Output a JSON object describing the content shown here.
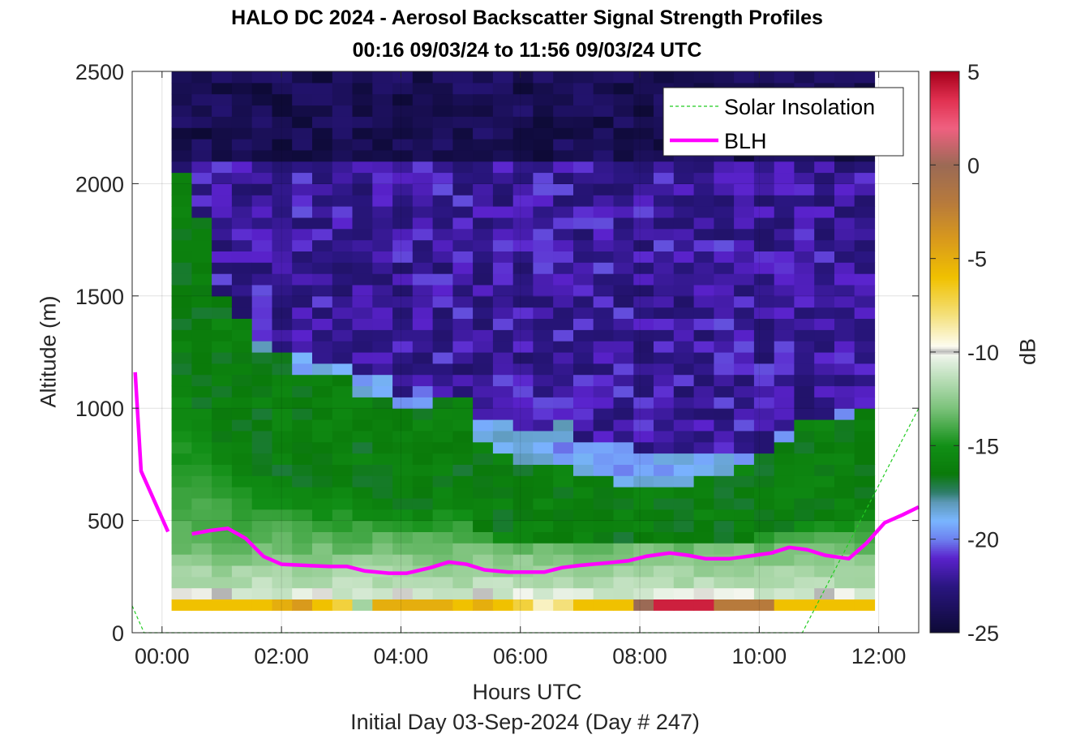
{
  "title_line1": "HALO DC 2024 - Aerosol Backscatter Signal Strength Profiles",
  "title_line2": "00:16 09/03/24 to 11:56 09/03/24  UTC",
  "footnote": "Initial Day 03-Sep-2024 (Day # 247)",
  "chart_data": {
    "type": "heatmap",
    "xlabel": "Hours UTC",
    "ylabel": "Altitude (m)",
    "colorbar_label": "dB",
    "xlim": [
      -0.5,
      12.67
    ],
    "ylim": [
      0,
      2500
    ],
    "x_ticks": [
      0,
      2,
      4,
      6,
      8,
      10,
      12
    ],
    "x_tick_labels": [
      "00:00",
      "02:00",
      "04:00",
      "06:00",
      "08:00",
      "10:00",
      "12:00"
    ],
    "y_ticks": [
      0,
      500,
      1000,
      1500,
      2000,
      2500
    ],
    "y_tick_labels": [
      "0",
      "500",
      "1000",
      "1500",
      "2000",
      "2500"
    ],
    "clim": [
      -25,
      5
    ],
    "colorbar_ticks": [
      5,
      0,
      -5,
      -10,
      -15,
      -20,
      -25
    ],
    "colorbar_tick_labels": [
      "5",
      "0",
      "-5",
      "-10",
      "-15",
      "-20",
      "-25"
    ],
    "colormap_stops": [
      {
        "v": -25,
        "c": "#0d0a35"
      },
      {
        "v": -22.5,
        "c": "#2a1680"
      },
      {
        "v": -21,
        "c": "#5a22cc"
      },
      {
        "v": -20,
        "c": "#6d80ef"
      },
      {
        "v": -19,
        "c": "#7ab6ff"
      },
      {
        "v": -18,
        "c": "#5c98b5"
      },
      {
        "v": -17.5,
        "c": "#2f7d6a"
      },
      {
        "v": -16.5,
        "c": "#0a7a0a"
      },
      {
        "v": -15,
        "c": "#118f16"
      },
      {
        "v": -13,
        "c": "#7bc27a"
      },
      {
        "v": -10.5,
        "c": "#dfeedd"
      },
      {
        "v": -10.1,
        "c": "#f4f6ee"
      },
      {
        "v": -10,
        "c": "#b0b0b0"
      },
      {
        "v": -9.7,
        "c": "#fdfdf2"
      },
      {
        "v": -8,
        "c": "#f4e07a"
      },
      {
        "v": -6,
        "c": "#f0c100"
      },
      {
        "v": -4,
        "c": "#d99a1c"
      },
      {
        "v": -2,
        "c": "#b77a3c"
      },
      {
        "v": 0,
        "c": "#9b6a55"
      },
      {
        "v": 2,
        "c": "#f06080"
      },
      {
        "v": 3.5,
        "c": "#e03050"
      },
      {
        "v": 5,
        "c": "#a6001b"
      }
    ],
    "heatmap": {
      "x_start": 0.16,
      "x_end": 11.93,
      "num_columns": 35,
      "y_start": 100,
      "y_end": 2500,
      "num_rows": 48,
      "description": "Signal strength (dB) per time column / 50 m altitude bin; grid values generated from estimated profile parameters below",
      "surface_values_first_bin": [
        -6,
        -6,
        -6,
        -6,
        -6,
        -5,
        -4,
        -6,
        -7,
        -12,
        -5,
        -5,
        -5,
        -5,
        -6,
        -5,
        -6,
        -7,
        -9,
        -8,
        -6,
        -6,
        -6,
        0,
        4,
        4,
        4,
        -2,
        -2,
        -2,
        -6,
        -6,
        -6,
        -6,
        -6
      ],
      "cloud_top_altitudes_m": [
        1350,
        1400,
        1450,
        1400,
        1300,
        1250,
        1250,
        1200,
        1200,
        1150,
        1150,
        1050,
        1100,
        1050,
        1050,
        950,
        950,
        900,
        900,
        950,
        850,
        850,
        850,
        800,
        800,
        800,
        800,
        800,
        800,
        800,
        900,
        950,
        950,
        1000,
        1000
      ],
      "green_layer_top_altitudes_m": [
        2050,
        1850,
        1500,
        1400,
        1250,
        1250,
        1150,
        1150,
        1150,
        1050,
        1050,
        1000,
        1000,
        1050,
        1050,
        850,
        800,
        750,
        750,
        750,
        700,
        700,
        650,
        650,
        650,
        650,
        700,
        700,
        750,
        800,
        850,
        950,
        950,
        950,
        1000
      ]
    },
    "series": [
      {
        "name": "Solar Insolation",
        "style": "dashed",
        "color": "#22cc22",
        "points": [
          [
            -0.5,
            120
          ],
          [
            -0.3,
            0
          ],
          [
            10.72,
            0
          ],
          [
            12.67,
            1000
          ]
        ]
      },
      {
        "name": "BLH",
        "style": "solid",
        "color": "#ff00ff",
        "segments": [
          [
            [
              -0.45,
              1160
            ],
            [
              -0.35,
              720
            ],
            [
              0.1,
              450
            ]
          ],
          [
            [
              0.5,
              440
            ],
            [
              0.8,
              455
            ],
            [
              1.1,
              465
            ],
            [
              1.4,
              420
            ],
            [
              1.7,
              340
            ],
            [
              2.0,
              305
            ],
            [
              2.4,
              300
            ],
            [
              2.8,
              295
            ],
            [
              3.1,
              295
            ],
            [
              3.4,
              275
            ],
            [
              3.8,
              265
            ],
            [
              4.1,
              265
            ],
            [
              4.5,
              290
            ],
            [
              4.8,
              315
            ],
            [
              5.1,
              305
            ],
            [
              5.4,
              280
            ],
            [
              5.8,
              270
            ],
            [
              6.1,
              270
            ],
            [
              6.4,
              270
            ],
            [
              6.7,
              290
            ],
            [
              7.0,
              300
            ],
            [
              7.4,
              310
            ],
            [
              7.8,
              320
            ],
            [
              8.1,
              340
            ],
            [
              8.5,
              355
            ],
            [
              8.8,
              345
            ],
            [
              9.1,
              330
            ],
            [
              9.5,
              330
            ],
            [
              9.8,
              340
            ],
            [
              10.2,
              355
            ],
            [
              10.5,
              380
            ],
            [
              10.8,
              370
            ],
            [
              11.1,
              345
            ],
            [
              11.5,
              330
            ],
            [
              11.8,
              400
            ],
            [
              12.1,
              490
            ],
            [
              12.4,
              525
            ],
            [
              12.67,
              560
            ]
          ]
        ]
      }
    ],
    "legend": {
      "placement": "top-right",
      "entries": [
        "Solar Insolation",
        "BLH"
      ]
    }
  }
}
